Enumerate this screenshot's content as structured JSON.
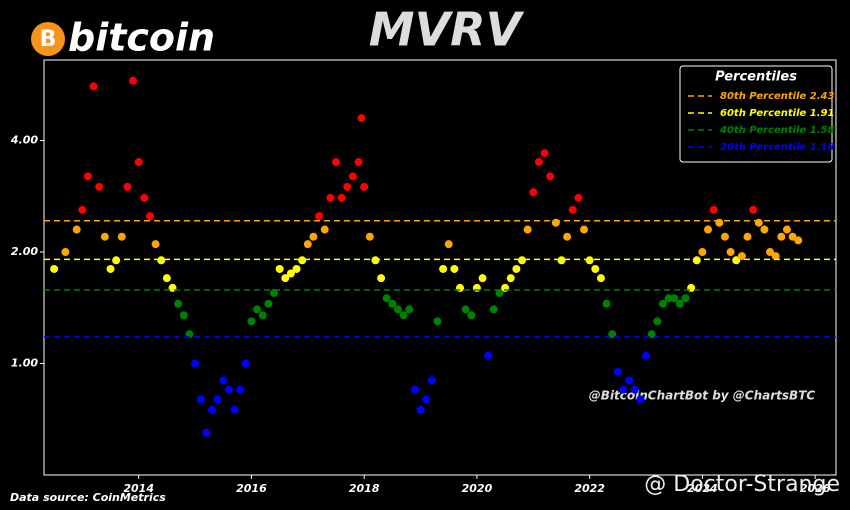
{
  "chart_data": {
    "type": "scatter",
    "title": "MVRV",
    "logo_text": "bitcoin",
    "logo_symbol": "B",
    "annotation": "@BitcoinChartBot by @ChartsBTC",
    "source": "Data source: CoinMetrics",
    "watermark": "@ Doctor-Strange",
    "log_scale_y": true,
    "xlim": [
      2012.32,
      2026.37
    ],
    "xticks": [
      2014,
      2016,
      2018,
      2020,
      2022,
      2024,
      2026
    ],
    "ylim": [
      0.5,
      6.6
    ],
    "yticks": [
      {
        "value": 1,
        "label": "1.00"
      },
      {
        "value": 2,
        "label": "2.00"
      },
      {
        "value": 4,
        "label": "4.00"
      }
    ],
    "legend_title": "Percentiles",
    "legend_position": "upper right",
    "top_color": "#ff0000",
    "percentiles": [
      {
        "label": "80th Percentile 2.43",
        "value": 2.43,
        "color": "#ffa500"
      },
      {
        "label": "60th Percentile 1.91",
        "value": 1.91,
        "color": "#ffff00"
      },
      {
        "label": "40th Percentile 1.58",
        "value": 1.58,
        "color": "#008000"
      },
      {
        "label": "20th Percentile 1.18",
        "value": 1.18,
        "color": "#0000ff"
      }
    ],
    "x": [
      2012.5,
      2012.7,
      2012.9,
      2013.0,
      2013.1,
      2013.2,
      2013.3,
      2013.4,
      2013.5,
      2013.6,
      2013.7,
      2013.8,
      2013.9,
      2014.0,
      2014.1,
      2014.2,
      2014.3,
      2014.4,
      2014.5,
      2014.6,
      2014.7,
      2014.8,
      2014.9,
      2015.0,
      2015.1,
      2015.2,
      2015.3,
      2015.4,
      2015.5,
      2015.6,
      2015.7,
      2015.8,
      2015.9,
      2016.0,
      2016.1,
      2016.2,
      2016.3,
      2016.4,
      2016.5,
      2016.6,
      2016.7,
      2016.8,
      2016.9,
      2017.0,
      2017.1,
      2017.2,
      2017.3,
      2017.4,
      2017.5,
      2017.6,
      2017.7,
      2017.8,
      2017.9,
      2017.95,
      2018.0,
      2018.1,
      2018.2,
      2018.3,
      2018.4,
      2018.5,
      2018.6,
      2018.7,
      2018.8,
      2018.9,
      2019.0,
      2019.1,
      2019.2,
      2019.3,
      2019.4,
      2019.5,
      2019.6,
      2019.7,
      2019.8,
      2019.9,
      2020.0,
      2020.1,
      2020.2,
      2020.3,
      2020.4,
      2020.5,
      2020.6,
      2020.7,
      2020.8,
      2020.9,
      2021.0,
      2021.1,
      2021.2,
      2021.3,
      2021.4,
      2021.5,
      2021.6,
      2021.7,
      2021.8,
      2021.9,
      2022.0,
      2022.1,
      2022.2,
      2022.3,
      2022.4,
      2022.5,
      2022.6,
      2022.7,
      2022.8,
      2022.9,
      2023.0,
      2023.1,
      2023.2,
      2023.3,
      2023.4,
      2023.5,
      2023.6,
      2023.7,
      2023.8,
      2023.9,
      2024.0,
      2024.1,
      2024.2,
      2024.3,
      2024.4,
      2024.5,
      2024.6,
      2024.7,
      2024.8,
      2024.9,
      2025.0,
      2025.1,
      2025.2,
      2025.3,
      2025.4,
      2025.5,
      2025.6,
      2025.7
    ],
    "values": [
      1.8,
      2.0,
      2.3,
      2.6,
      3.2,
      5.6,
      3.0,
      2.2,
      1.8,
      1.9,
      2.2,
      3.0,
      5.8,
      3.5,
      2.8,
      2.5,
      2.1,
      1.9,
      1.7,
      1.6,
      1.45,
      1.35,
      1.2,
      1.0,
      0.8,
      0.65,
      0.75,
      0.8,
      0.9,
      0.85,
      0.75,
      0.85,
      1.0,
      1.3,
      1.4,
      1.35,
      1.45,
      1.55,
      1.8,
      1.7,
      1.75,
      1.8,
      1.9,
      2.1,
      2.2,
      2.5,
      2.3,
      2.8,
      3.5,
      2.8,
      3.0,
      3.2,
      3.5,
      4.6,
      3.0,
      2.2,
      1.9,
      1.7,
      1.5,
      1.45,
      1.4,
      1.35,
      1.4,
      0.85,
      0.75,
      0.8,
      0.9,
      1.3,
      1.8,
      2.1,
      1.8,
      1.6,
      1.4,
      1.35,
      1.6,
      1.7,
      1.05,
      1.4,
      1.55,
      1.6,
      1.7,
      1.8,
      1.9,
      2.3,
      2.9,
      3.5,
      3.7,
      3.2,
      2.4,
      1.9,
      2.2,
      2.6,
      2.8,
      2.3,
      1.9,
      1.8,
      1.7,
      1.45,
      1.2,
      0.95,
      0.85,
      0.9,
      0.85,
      0.8,
      1.05,
      1.2,
      1.3,
      1.45,
      1.5,
      1.5,
      1.45,
      1.5,
      1.6,
      1.9,
      2.0,
      2.3,
      2.6,
      2.4,
      2.2,
      2.0,
      1.9,
      1.95,
      2.2,
      2.6,
      2.4,
      2.3,
      2.0,
      1.95,
      2.2,
      2.3,
      2.2,
      2.15
    ]
  }
}
